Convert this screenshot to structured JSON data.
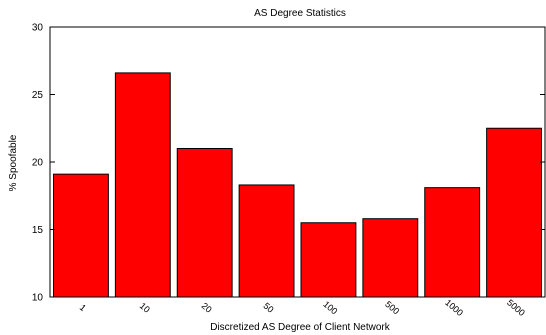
{
  "chart_data": {
    "type": "bar",
    "title": "AS Degree Statistics",
    "xlabel": "Discretized AS Degree of Client Network",
    "ylabel": "% Spoofable",
    "categories": [
      "1",
      "10",
      "20",
      "50",
      "100",
      "500",
      "1000",
      "5000"
    ],
    "values": [
      19.1,
      26.6,
      21.0,
      18.3,
      15.5,
      15.8,
      18.1,
      22.5
    ],
    "ylim": [
      10,
      30
    ],
    "yticks": [
      "10",
      "15",
      "20",
      "25",
      "30"
    ],
    "bar_color": "#ff0000",
    "grid": false,
    "legend": "none"
  }
}
